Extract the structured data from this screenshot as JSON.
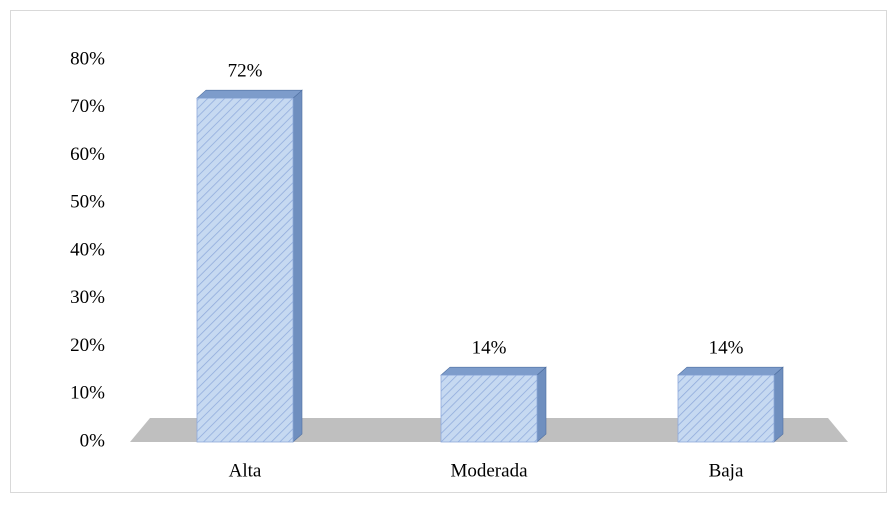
{
  "chart_data": {
    "type": "bar3d",
    "categories": [
      "Alta",
      "Moderada",
      "Baja"
    ],
    "values": [
      72,
      14,
      14
    ],
    "value_labels": [
      "72%",
      "14%",
      "14%"
    ],
    "color": "#c6d9f1",
    "ylim": [
      0,
      80
    ],
    "yticks": [
      {
        "value": 0,
        "label": "0%"
      },
      {
        "value": 10,
        "label": "10%"
      },
      {
        "value": 20,
        "label": "20%"
      },
      {
        "value": 30,
        "label": "30%"
      },
      {
        "value": 40,
        "label": "40%"
      },
      {
        "value": 50,
        "label": "50%"
      },
      {
        "value": 60,
        "label": "60%"
      },
      {
        "value": 70,
        "label": "70%"
      },
      {
        "value": 80,
        "label": "80%"
      }
    ],
    "grid": false
  }
}
